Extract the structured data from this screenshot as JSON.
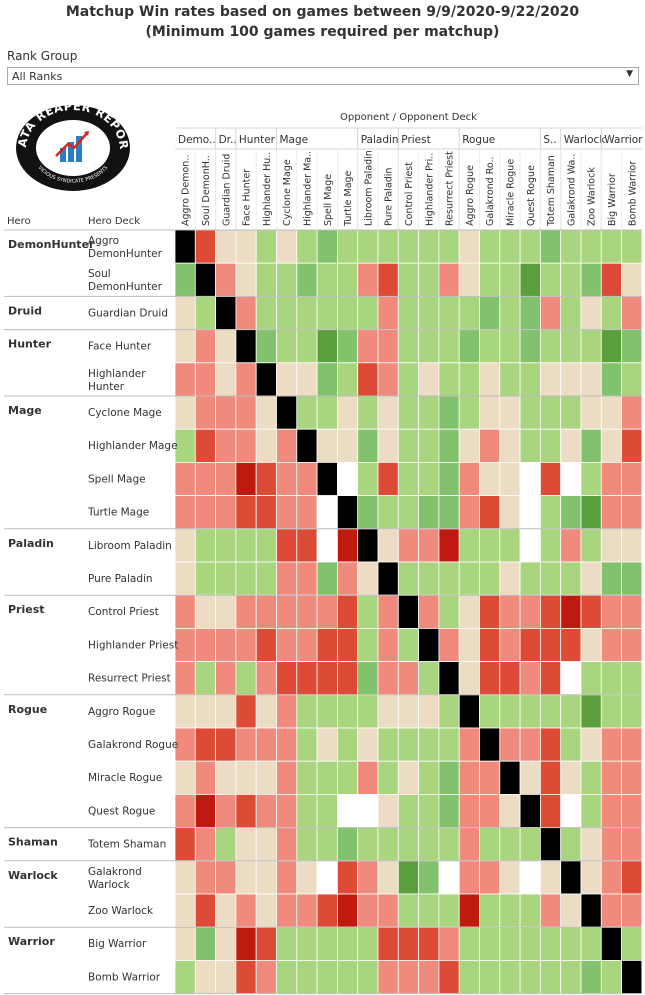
{
  "title_line1": "Matchup Win rates based on games between 9/9/2020-9/22/2020",
  "title_line2": "(Minimum 100 games required per matchup)",
  "filter": {
    "label": "Rank Group",
    "selected": "All Ranks"
  },
  "logo": {
    "text": "DATA REAPER REPORT",
    "subtext": "VICIOUS SYNDICATE PRESENTS"
  },
  "axis": {
    "opponent_title": "Opponent  /  Opponent Deck",
    "hero_header": "Hero",
    "deck_header": "Hero Deck"
  },
  "colors": {
    "black": "#000000",
    "very_red": "#c0190f",
    "red": "#dd4a36",
    "light_red": "#f08a7c",
    "neutral": "#ecdcc4",
    "light_green": "#a8d57e",
    "green": "#82c26c",
    "dark_green": "#5a9f3c",
    "white": "#ffffff"
  },
  "chart_data": {
    "type": "heatmap",
    "title": "Matchup Win rates based on games between 9/9/2020-9/22/2020",
    "subtitle": "(Minimum 100 games required per matchup)",
    "xlabel": "Opponent  /  Opponent Deck",
    "ylabel": "Hero / Hero Deck",
    "value_scale": "ordinal color level: -3 strong loss ... +3 strong win, null = no data (white), D = mirror (black)",
    "col_groups": [
      {
        "label": "Demo..",
        "span": 2
      },
      {
        "label": "Dr..",
        "span": 1
      },
      {
        "label": "Hunter",
        "span": 2
      },
      {
        "label": "Mage",
        "span": 4
      },
      {
        "label": "Paladin",
        "span": 2
      },
      {
        "label": "Priest",
        "span": 3
      },
      {
        "label": "Rogue",
        "span": 4
      },
      {
        "label": "S..",
        "span": 1
      },
      {
        "label": "Warlock",
        "span": 2
      },
      {
        "label": "Warrior",
        "span": 2
      }
    ],
    "columns": [
      "Aggro Demon..",
      "Soul DemonH..",
      "Guardian Druid",
      "Face Hunter",
      "Highlander Hu..",
      "Cyclone Mage",
      "Highlander Ma..",
      "Spell Mage",
      "Turtle Mage",
      "Libroom Paladin",
      "Pure Paladin",
      "Control Priest",
      "Highlander Pri..",
      "Resurrect Priest",
      "Aggro Rogue",
      "Galakrond Ro..",
      "Miracle Rogue",
      "Quest Rogue",
      "Totem Shaman",
      "Galakrond Wa..",
      "Zoo Warlock",
      "Big Warrior",
      "Bomb Warrior"
    ],
    "row_groups": [
      {
        "hero": "DemonHunter",
        "decks": [
          "Aggro\nDemonHunter",
          "Soul\nDemonHunter"
        ]
      },
      {
        "hero": "Druid",
        "decks": [
          "Guardian Druid"
        ]
      },
      {
        "hero": "Hunter",
        "decks": [
          "Face Hunter",
          "Highlander\nHunter"
        ]
      },
      {
        "hero": "Mage",
        "decks": [
          "Cyclone Mage",
          "Highlander Mage",
          "Spell Mage",
          "Turtle Mage"
        ]
      },
      {
        "hero": "Paladin",
        "decks": [
          "Libroom Paladin",
          "Pure Paladin"
        ]
      },
      {
        "hero": "Priest",
        "decks": [
          "Control Priest",
          "Highlander Priest",
          "Resurrect Priest"
        ]
      },
      {
        "hero": "Rogue",
        "decks": [
          "Aggro Rogue",
          "Galakrond Rogue",
          "Miracle Rogue",
          "Quest Rogue"
        ]
      },
      {
        "hero": "Shaman",
        "decks": [
          "Totem Shaman"
        ]
      },
      {
        "hero": "Warlock",
        "decks": [
          "Galakrond\nWarlock",
          "Zoo Warlock"
        ]
      },
      {
        "hero": "Warrior",
        "decks": [
          "Big Warrior",
          "Bomb Warrior"
        ]
      }
    ],
    "values": [
      [
        "D",
        -2,
        0,
        0,
        1,
        0,
        1,
        2,
        1,
        1,
        1,
        1,
        1,
        1,
        0,
        1,
        1,
        1,
        2,
        1,
        1,
        1,
        1
      ],
      [
        2,
        "D",
        -1,
        0,
        1,
        1,
        2,
        1,
        1,
        -1,
        -2,
        1,
        1,
        -1,
        0,
        1,
        1,
        3,
        1,
        1,
        2,
        -2,
        0
      ],
      [
        0,
        1,
        "D",
        -1,
        1,
        1,
        1,
        1,
        1,
        1,
        -1,
        1,
        1,
        1,
        1,
        2,
        1,
        2,
        -1,
        1,
        0,
        1,
        -1
      ],
      [
        0,
        -1,
        0,
        "D",
        2,
        1,
        1,
        3,
        2,
        -1,
        -1,
        1,
        1,
        1,
        2,
        1,
        1,
        2,
        1,
        1,
        1,
        3,
        2
      ],
      [
        -1,
        -1,
        0,
        -1,
        "D",
        0,
        0,
        2,
        1,
        -2,
        -1,
        1,
        0,
        1,
        1,
        0,
        1,
        1,
        0,
        0,
        0,
        2,
        1
      ],
      [
        0,
        -1,
        -1,
        -1,
        0,
        "D",
        1,
        1,
        0,
        1,
        0,
        1,
        1,
        2,
        1,
        0,
        0,
        1,
        1,
        1,
        0,
        0,
        -1
      ],
      [
        1,
        -2,
        -1,
        -1,
        0,
        -1,
        "D",
        0,
        0,
        2,
        0,
        1,
        1,
        2,
        0,
        -1,
        0,
        1,
        1,
        0,
        2,
        0,
        -2
      ],
      [
        -1,
        -1,
        -1,
        -3,
        -2,
        -1,
        -1,
        "D",
        null,
        1,
        -2,
        1,
        1,
        2,
        -1,
        0,
        0,
        null,
        -2,
        null,
        1,
        -1,
        -1
      ],
      [
        -1,
        -1,
        -1,
        -2,
        -2,
        -1,
        -1,
        null,
        "D",
        2,
        1,
        1,
        2,
        2,
        -1,
        -2,
        0,
        null,
        1,
        2,
        3,
        -1,
        -1
      ],
      [
        0,
        1,
        1,
        1,
        1,
        -2,
        -2,
        null,
        -3,
        "D",
        0,
        -1,
        -1,
        -3,
        1,
        1,
        1,
        null,
        1,
        -1,
        1,
        0,
        0
      ],
      [
        0,
        1,
        1,
        1,
        1,
        -1,
        -1,
        2,
        -1,
        0,
        "D",
        1,
        1,
        1,
        1,
        1,
        0,
        1,
        1,
        1,
        0,
        2,
        2
      ],
      [
        -1,
        0,
        0,
        -1,
        -1,
        -1,
        -1,
        -1,
        -2,
        1,
        -1,
        "D",
        -1,
        1,
        0,
        -2,
        -1,
        -1,
        -2,
        -3,
        -2,
        -1,
        -1
      ],
      [
        -1,
        -1,
        -1,
        -1,
        -2,
        -1,
        -1,
        -2,
        -2,
        1,
        -1,
        1,
        "D",
        -1,
        0,
        -2,
        -1,
        -2,
        -2,
        -2,
        0,
        -1,
        -1
      ],
      [
        -1,
        1,
        -1,
        1,
        -1,
        -2,
        -2,
        -2,
        -2,
        2,
        -1,
        -1,
        1,
        "D",
        0,
        -2,
        -2,
        -1,
        -2,
        null,
        1,
        1,
        1
      ],
      [
        0,
        0,
        0,
        -2,
        0,
        -1,
        1,
        1,
        1,
        1,
        0,
        0,
        0,
        1,
        "D",
        1,
        1,
        1,
        1,
        1,
        3,
        1,
        1
      ],
      [
        -1,
        -2,
        -2,
        -1,
        -1,
        -1,
        1,
        0,
        1,
        0,
        1,
        1,
        1,
        1,
        -1,
        "D",
        -1,
        -1,
        -2,
        1,
        0,
        -1,
        -1
      ],
      [
        0,
        -1,
        0,
        0,
        0,
        -1,
        1,
        1,
        1,
        -1,
        1,
        0,
        1,
        2,
        -1,
        -1,
        "D",
        0,
        -2,
        0,
        1,
        -1,
        -1
      ],
      [
        -1,
        -3,
        -1,
        -2,
        -1,
        -1,
        1,
        1,
        null,
        null,
        0,
        1,
        1,
        2,
        -1,
        -1,
        0,
        "D",
        -2,
        null,
        1,
        -1,
        -1
      ],
      [
        -2,
        -1,
        1,
        0,
        0,
        -1,
        1,
        1,
        2,
        1,
        1,
        1,
        1,
        1,
        -1,
        1,
        1,
        1,
        "D",
        1,
        0,
        -1,
        -1
      ],
      [
        0,
        -1,
        -1,
        0,
        0,
        -1,
        0,
        null,
        -2,
        -1,
        0,
        3,
        2,
        null,
        -1,
        -1,
        0,
        null,
        0,
        "D",
        0,
        -1,
        -2
      ],
      [
        0,
        -2,
        0,
        -1,
        0,
        -1,
        -1,
        -2,
        -3,
        -1,
        -1,
        1,
        1,
        1,
        -3,
        1,
        1,
        1,
        -1,
        0,
        "D",
        -1,
        -1
      ],
      [
        0,
        2,
        0,
        -3,
        -2,
        1,
        1,
        1,
        1,
        1,
        -2,
        -2,
        -2,
        -1,
        1,
        1,
        1,
        1,
        1,
        1,
        1,
        "D",
        1
      ],
      [
        1,
        0,
        0,
        -2,
        -1,
        1,
        1,
        1,
        1,
        1,
        -1,
        -1,
        -1,
        -2,
        1,
        1,
        1,
        1,
        1,
        1,
        2,
        1,
        "D"
      ]
    ]
  }
}
